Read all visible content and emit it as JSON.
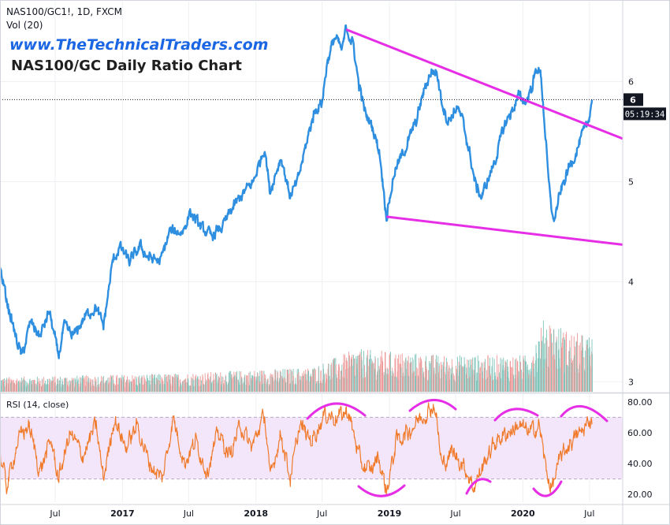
{
  "header": {
    "symbol": "NAS100/GC1!, 1D, FXCM",
    "volume_label": "Vol (20)",
    "brand": "www.TheTechnicalTraders.com",
    "title": "NAS100/GC Daily Ratio Chart"
  },
  "colors": {
    "price_line": "#2e8fe0",
    "trend_lines": "#e62ee6",
    "rsi_line": "#f07a2a",
    "rsi_band": "#f3e6fb",
    "vol_up": "#7fc4ba",
    "vol_down": "#ee9a9a",
    "axis_text": "#131722"
  },
  "chart_data": [
    {
      "type": "line",
      "name": "price",
      "ylim": [
        2.9,
        6.8
      ],
      "x_range": [
        "2016-02-01",
        "2020-09-30"
      ],
      "yticks": [
        3,
        4,
        5,
        6
      ],
      "last_value_label": "6",
      "countdown_label": "05:19:34",
      "last_value": 5.82,
      "anchors": [
        [
          "2016-02-01",
          4.15
        ],
        [
          "2016-02-20",
          3.8
        ],
        [
          "2016-03-15",
          3.45
        ],
        [
          "2016-04-01",
          3.25
        ],
        [
          "2016-04-25",
          3.6
        ],
        [
          "2016-05-20",
          3.45
        ],
        [
          "2016-06-15",
          3.7
        ],
        [
          "2016-07-10",
          3.25
        ],
        [
          "2016-07-25",
          3.55
        ],
        [
          "2016-08-20",
          3.45
        ],
        [
          "2016-09-20",
          3.65
        ],
        [
          "2016-10-20",
          3.75
        ],
        [
          "2016-11-10",
          3.55
        ],
        [
          "2016-12-05",
          4.2
        ],
        [
          "2016-12-25",
          4.35
        ],
        [
          "2017-01-20",
          4.2
        ],
        [
          "2017-02-20",
          4.35
        ],
        [
          "2017-03-10",
          4.25
        ],
        [
          "2017-04-15",
          4.2
        ],
        [
          "2017-05-10",
          4.5
        ],
        [
          "2017-06-15",
          4.5
        ],
        [
          "2017-07-05",
          4.7
        ],
        [
          "2017-08-01",
          4.55
        ],
        [
          "2017-09-01",
          4.45
        ],
        [
          "2017-10-01",
          4.55
        ],
        [
          "2017-11-01",
          4.75
        ],
        [
          "2017-12-01",
          4.9
        ],
        [
          "2017-12-25",
          5.0
        ],
        [
          "2018-01-25",
          5.35
        ],
        [
          "2018-02-08",
          4.9
        ],
        [
          "2018-03-10",
          5.25
        ],
        [
          "2018-04-05",
          4.85
        ],
        [
          "2018-04-25",
          5.0
        ],
        [
          "2018-05-20",
          5.4
        ],
        [
          "2018-06-10",
          5.7
        ],
        [
          "2018-07-01",
          5.8
        ],
        [
          "2018-07-15",
          6.2
        ],
        [
          "2018-08-05",
          6.45
        ],
        [
          "2018-08-25",
          6.3
        ],
        [
          "2018-09-05",
          6.55
        ],
        [
          "2018-09-25",
          6.35
        ],
        [
          "2018-10-08",
          6.0
        ],
        [
          "2018-10-25",
          5.7
        ],
        [
          "2018-11-15",
          5.55
        ],
        [
          "2018-12-05",
          5.3
        ],
        [
          "2018-12-24",
          4.65
        ],
        [
          "2019-01-15",
          5.1
        ],
        [
          "2019-02-15",
          5.35
        ],
        [
          "2019-03-15",
          5.6
        ],
        [
          "2019-04-05",
          5.9
        ],
        [
          "2019-04-25",
          6.1
        ],
        [
          "2019-05-10",
          6.1
        ],
        [
          "2019-05-25",
          5.8
        ],
        [
          "2019-06-10",
          5.6
        ],
        [
          "2019-07-05",
          5.75
        ],
        [
          "2019-07-20",
          5.6
        ],
        [
          "2019-08-05",
          5.35
        ],
        [
          "2019-08-25",
          4.95
        ],
        [
          "2019-09-10",
          4.85
        ],
        [
          "2019-10-01",
          5.05
        ],
        [
          "2019-10-20",
          5.25
        ],
        [
          "2019-11-10",
          5.55
        ],
        [
          "2019-12-01",
          5.7
        ],
        [
          "2019-12-20",
          5.85
        ],
        [
          "2020-01-10",
          5.8
        ],
        [
          "2020-01-25",
          5.95
        ],
        [
          "2020-02-10",
          6.15
        ],
        [
          "2020-02-20",
          6.05
        ],
        [
          "2020-03-01",
          5.55
        ],
        [
          "2020-03-12",
          4.95
        ],
        [
          "2020-03-25",
          4.6
        ],
        [
          "2020-04-10",
          4.85
        ],
        [
          "2020-05-01",
          5.1
        ],
        [
          "2020-05-20",
          5.25
        ],
        [
          "2020-06-10",
          5.45
        ],
        [
          "2020-06-25",
          5.55
        ],
        [
          "2020-07-08",
          5.82
        ]
      ]
    },
    {
      "type": "bar",
      "name": "volume",
      "scale_max": 1.0,
      "profile": [
        [
          "2016-02-01",
          0.12
        ],
        [
          "2017-06-01",
          0.15
        ],
        [
          "2018-06-01",
          0.2
        ],
        [
          "2018-10-01",
          0.35
        ],
        [
          "2019-06-01",
          0.3
        ],
        [
          "2020-01-15",
          0.3
        ],
        [
          "2020-03-01",
          0.62
        ],
        [
          "2020-05-01",
          0.5
        ],
        [
          "2020-07-08",
          0.45
        ]
      ]
    },
    {
      "type": "line",
      "name": "rsi",
      "label": "RSI (14, close)",
      "ylim": [
        15,
        85
      ],
      "yticks": [
        "80.00",
        "60.00",
        "40.00",
        "20.00"
      ],
      "band": [
        30,
        70
      ],
      "anchors": [
        [
          "2016-02-01",
          45
        ],
        [
          "2016-02-20",
          25
        ],
        [
          "2016-03-20",
          55
        ],
        [
          "2016-04-20",
          65
        ],
        [
          "2016-05-20",
          35
        ],
        [
          "2016-06-20",
          55
        ],
        [
          "2016-07-10",
          30
        ],
        [
          "2016-08-10",
          60
        ],
        [
          "2016-09-15",
          45
        ],
        [
          "2016-10-20",
          65
        ],
        [
          "2016-11-10",
          30
        ],
        [
          "2016-12-10",
          70
        ],
        [
          "2017-01-10",
          50
        ],
        [
          "2017-02-10",
          65
        ],
        [
          "2017-03-15",
          40
        ],
        [
          "2017-04-20",
          30
        ],
        [
          "2017-05-20",
          70
        ],
        [
          "2017-06-20",
          40
        ],
        [
          "2017-07-20",
          55
        ],
        [
          "2017-08-20",
          35
        ],
        [
          "2017-09-20",
          60
        ],
        [
          "2017-10-20",
          45
        ],
        [
          "2017-11-20",
          65
        ],
        [
          "2017-12-20",
          50
        ],
        [
          "2018-01-25",
          72
        ],
        [
          "2018-02-08",
          30
        ],
        [
          "2018-03-10",
          60
        ],
        [
          "2018-04-05",
          30
        ],
        [
          "2018-05-01",
          65
        ],
        [
          "2018-06-01",
          55
        ],
        [
          "2018-07-10",
          72
        ],
        [
          "2018-08-10",
          70
        ],
        [
          "2018-09-10",
          74
        ],
        [
          "2018-10-15",
          40
        ],
        [
          "2018-11-10",
          35
        ],
        [
          "2018-12-01",
          45
        ],
        [
          "2018-12-24",
          22
        ],
        [
          "2019-01-20",
          55
        ],
        [
          "2019-02-20",
          60
        ],
        [
          "2019-03-20",
          68
        ],
        [
          "2019-04-20",
          75
        ],
        [
          "2019-05-05",
          78
        ],
        [
          "2019-05-25",
          38
        ],
        [
          "2019-06-20",
          48
        ],
        [
          "2019-07-20",
          40
        ],
        [
          "2019-08-20",
          25
        ],
        [
          "2019-09-20",
          42
        ],
        [
          "2019-10-20",
          55
        ],
        [
          "2019-11-20",
          60
        ],
        [
          "2019-12-20",
          65
        ],
        [
          "2020-01-20",
          60
        ],
        [
          "2020-02-15",
          65
        ],
        [
          "2020-03-05",
          35
        ],
        [
          "2020-03-20",
          24
        ],
        [
          "2020-04-15",
          45
        ],
        [
          "2020-05-15",
          55
        ],
        [
          "2020-06-15",
          62
        ],
        [
          "2020-07-08",
          70
        ]
      ]
    }
  ],
  "annotations": {
    "resistance": [
      [
        "2018-09-05",
        6.52
      ],
      [
        "2020-09-30",
        5.43
      ]
    ],
    "support": [
      [
        "2018-12-24",
        4.65
      ],
      [
        "2020-09-30",
        4.37
      ]
    ]
  },
  "x_axis": {
    "ticks": [
      {
        "label": "Jul",
        "date": "2016-07-01"
      },
      {
        "label": "2017",
        "date": "2017-01-01"
      },
      {
        "label": "Jul",
        "date": "2017-07-01"
      },
      {
        "label": "2018",
        "date": "2018-01-01"
      },
      {
        "label": "Jul",
        "date": "2018-07-01"
      },
      {
        "label": "2019",
        "date": "2019-01-01"
      },
      {
        "label": "Jul",
        "date": "2019-07-01"
      },
      {
        "label": "2020",
        "date": "2020-01-01"
      },
      {
        "label": "Jul",
        "date": "2020-07-01"
      }
    ]
  }
}
